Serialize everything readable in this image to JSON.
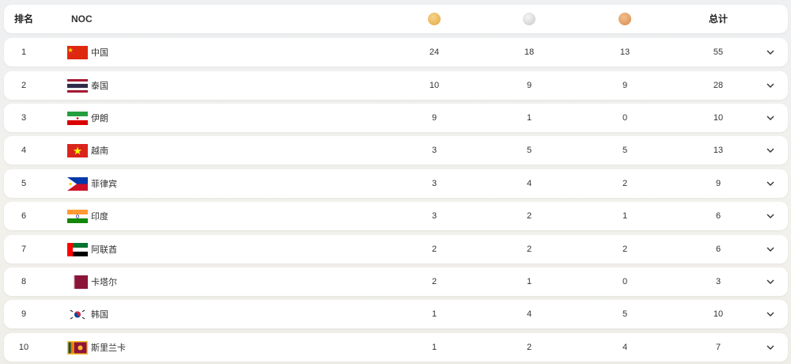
{
  "header": {
    "rank": "排名",
    "noc": "NOC",
    "gold_icon": "gold-medal-icon",
    "silver_icon": "silver-medal-icon",
    "bronze_icon": "bronze-medal-icon",
    "total": "总计"
  },
  "colors": {
    "gold": "#e8b24f",
    "silver": "#d9d9d9",
    "bronze": "#e0985a"
  },
  "rows": [
    {
      "rank": "1",
      "flag": "china",
      "name": "中国",
      "gold": "24",
      "silver": "18",
      "bronze": "13",
      "total": "55"
    },
    {
      "rank": "2",
      "flag": "thailand",
      "name": "泰国",
      "gold": "10",
      "silver": "9",
      "bronze": "9",
      "total": "28"
    },
    {
      "rank": "3",
      "flag": "iran",
      "name": "伊朗",
      "gold": "9",
      "silver": "1",
      "bronze": "0",
      "total": "10"
    },
    {
      "rank": "4",
      "flag": "vietnam",
      "name": "越南",
      "gold": "3",
      "silver": "5",
      "bronze": "5",
      "total": "13"
    },
    {
      "rank": "5",
      "flag": "philippines",
      "name": "菲律宾",
      "gold": "3",
      "silver": "4",
      "bronze": "2",
      "total": "9"
    },
    {
      "rank": "6",
      "flag": "india",
      "name": "印度",
      "gold": "3",
      "silver": "2",
      "bronze": "1",
      "total": "6"
    },
    {
      "rank": "7",
      "flag": "uae",
      "name": "阿联酋",
      "gold": "2",
      "silver": "2",
      "bronze": "2",
      "total": "6"
    },
    {
      "rank": "8",
      "flag": "qatar",
      "name": "卡塔尔",
      "gold": "2",
      "silver": "1",
      "bronze": "0",
      "total": "3"
    },
    {
      "rank": "9",
      "flag": "korea",
      "name": "韩国",
      "gold": "1",
      "silver": "4",
      "bronze": "5",
      "total": "10"
    },
    {
      "rank": "10",
      "flag": "srilanka",
      "name": "斯里兰卡",
      "gold": "1",
      "silver": "2",
      "bronze": "4",
      "total": "7"
    }
  ]
}
